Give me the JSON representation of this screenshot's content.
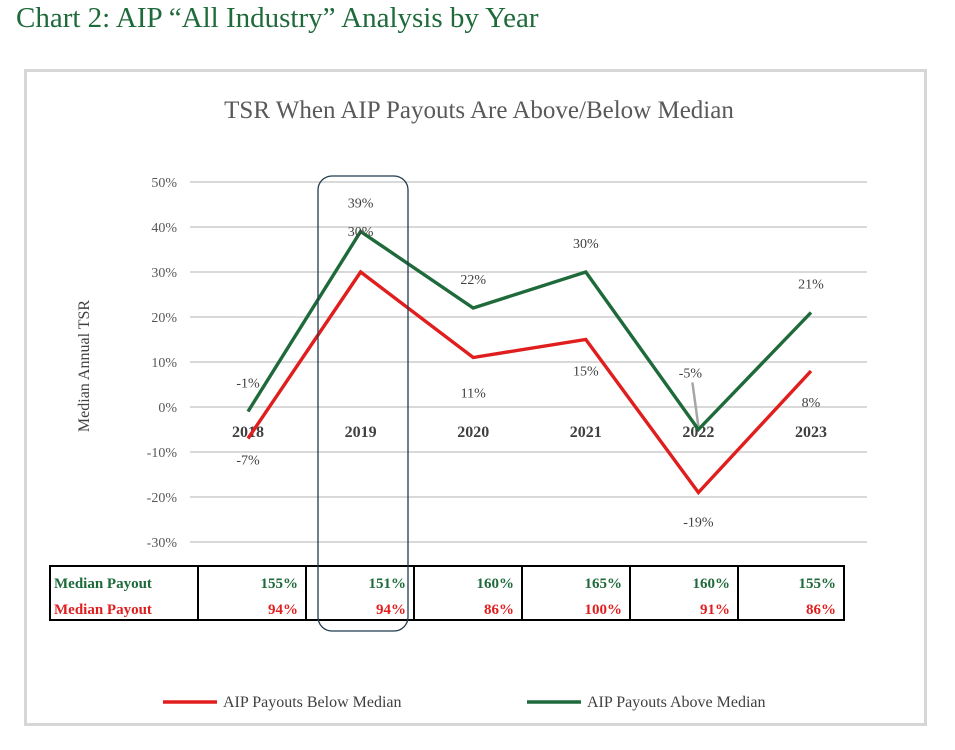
{
  "heading": "Chart 2: AIP “All Industry” Analysis by Year",
  "colors": {
    "above": "#1e6a3a",
    "below": "#e01e1e",
    "grid": "#d9d9d9",
    "heading": "#1e6a3a"
  },
  "chart_data": {
    "type": "line",
    "title": "TSR When AIP Payouts Are Above/Below Median",
    "ylabel": "Median Annual TSR",
    "xlabel": "",
    "ylim": [
      -30,
      50
    ],
    "yticks": [
      "50%",
      "40%",
      "30%",
      "20%",
      "10%",
      "0%",
      "-10%",
      "-20%",
      "-30%"
    ],
    "ytick_values": [
      50,
      40,
      30,
      20,
      10,
      0,
      -10,
      -20,
      -30
    ],
    "categories": [
      "2018",
      "2019",
      "2020",
      "2021",
      "2022",
      "2023"
    ],
    "grid": true,
    "legend_position": "bottom",
    "highlight_category": "2019",
    "series": [
      {
        "name": "AIP Payouts Below Median",
        "color": "#e01e1e",
        "values": [
          -7,
          30,
          11,
          15,
          -19,
          8
        ],
        "labels": [
          "-7%",
          "30%",
          "11%",
          "15%",
          "-19%",
          "8%"
        ]
      },
      {
        "name": "AIP Payouts Above Median",
        "color": "#1e6a3a",
        "values": [
          -1,
          39,
          22,
          30,
          -5,
          21
        ],
        "labels": [
          "-1%",
          "39%",
          "22%",
          "30%",
          "-5%",
          "21%"
        ]
      }
    ],
    "table": {
      "rows": [
        {
          "label": "Median Payout",
          "color": "#1e6a3a",
          "values": [
            "155%",
            "151%",
            "160%",
            "165%",
            "160%",
            "155%"
          ]
        },
        {
          "label": "Median Payout",
          "color": "#e01e1e",
          "values": [
            "94%",
            "94%",
            "86%",
            "100%",
            "91%",
            "86%"
          ]
        }
      ]
    }
  }
}
